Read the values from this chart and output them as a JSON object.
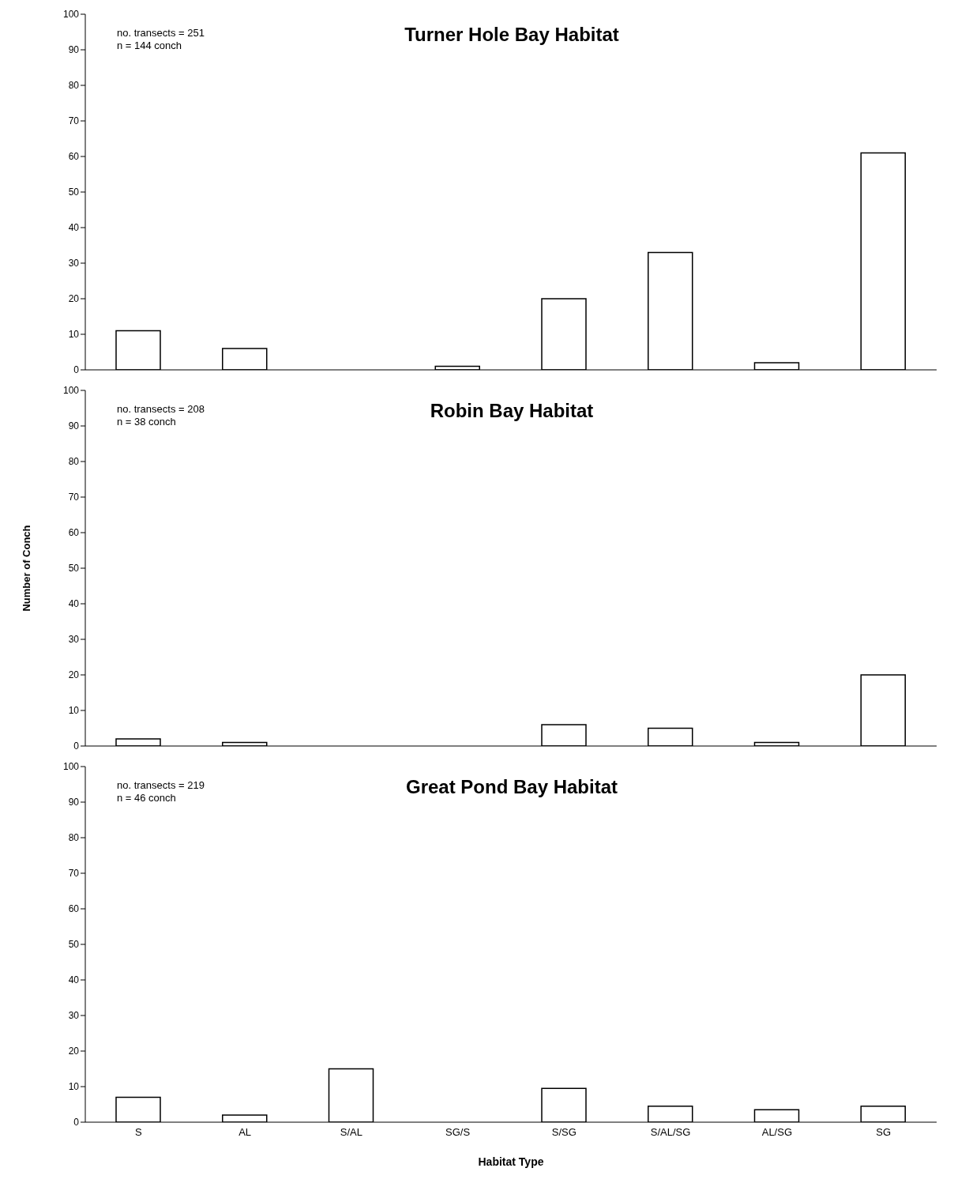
{
  "chart_data": [
    {
      "type": "bar",
      "title": "Turner Hole Bay Habitat",
      "annotations": [
        "no. transects = 251",
        "n = 144 conch"
      ],
      "categories": [
        null,
        null,
        null,
        null,
        null,
        null,
        null,
        null
      ],
      "values": [
        11,
        6,
        0,
        1,
        20,
        33,
        2,
        61
      ],
      "color": "#ffffff",
      "ylim": [
        0,
        100
      ],
      "yticks": [
        0,
        10,
        20,
        30,
        40,
        50,
        60,
        70,
        80,
        90,
        100
      ],
      "grid": false,
      "legend": false,
      "tick_labels": "y"
    },
    {
      "type": "bar",
      "title": "Robin Bay Habitat",
      "ylabel": "Number of Conch",
      "annotations": [
        "no. transects = 208",
        "n = 38 conch"
      ],
      "categories": [
        null,
        null,
        null,
        null,
        null,
        null,
        null,
        null
      ],
      "values": [
        2,
        1,
        0,
        0,
        6,
        5,
        1,
        20
      ],
      "color": "#ffffff",
      "ylim": [
        0,
        100
      ],
      "yticks": [
        0,
        10,
        20,
        30,
        40,
        50,
        60,
        70,
        80,
        90,
        100
      ],
      "grid": false,
      "legend": false,
      "tick_labels": "y"
    },
    {
      "type": "bar",
      "title": "Great Pond Bay Habitat",
      "xlabel": "Habitat Type",
      "annotations": [
        "no. transects = 219",
        "n = 46 conch"
      ],
      "categories": [
        "S",
        "AL",
        "S/AL",
        "SG/S",
        "S/SG",
        "S/AL/SG",
        "AL/SG",
        "SG"
      ],
      "values": [
        7,
        2,
        15,
        0,
        9.5,
        4.5,
        3.5,
        4.5
      ],
      "color": "#ffffff",
      "ylim": [
        0,
        100
      ],
      "yticks": [
        0,
        10,
        20,
        30,
        40,
        50,
        60,
        70,
        80,
        90,
        100
      ],
      "grid": false,
      "legend": false
    }
  ]
}
